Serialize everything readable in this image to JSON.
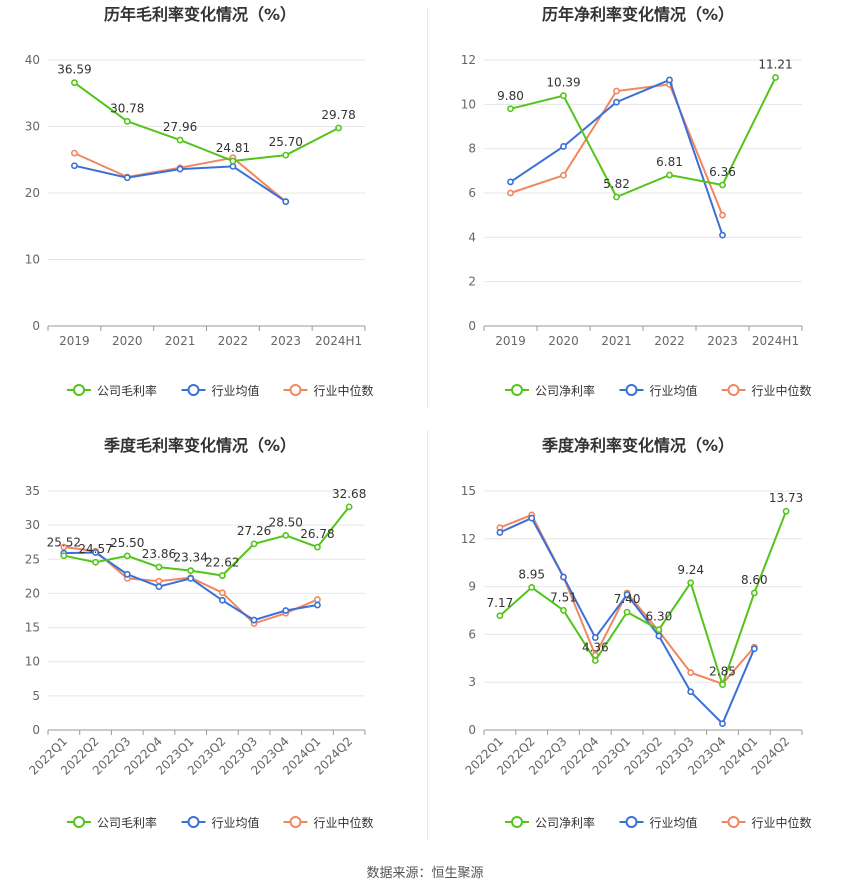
{
  "colors": {
    "company": "#52c41a",
    "industry_avg": "#3a70d8",
    "industry_median": "#f0875f",
    "grid": "#e6e6e6",
    "axis_text": "#666666",
    "title_text": "#333333"
  },
  "source_text": "数据来源：恒生聚源",
  "chart_data": [
    {
      "type": "line",
      "title": "历年毛利率变化情况（%）",
      "categories": [
        "2019",
        "2020",
        "2021",
        "2022",
        "2023",
        "2024H1"
      ],
      "ylim": [
        0,
        40
      ],
      "yticks": [
        0,
        10,
        20,
        30,
        40
      ],
      "series": [
        {
          "name": "公司毛利率",
          "values": [
            36.59,
            30.78,
            27.96,
            24.81,
            25.7,
            29.78
          ],
          "labels": [
            "36.59",
            "30.78",
            "27.96",
            "24.81",
            "25.70",
            "29.78"
          ]
        },
        {
          "name": "行业均值",
          "values": [
            24.1,
            22.3,
            23.6,
            24.0,
            18.7,
            null
          ]
        },
        {
          "name": "行业中位数",
          "values": [
            26.0,
            22.4,
            23.8,
            25.3,
            18.7,
            null
          ]
        }
      ],
      "legend": "bottom",
      "grid": true
    },
    {
      "type": "line",
      "title": "历年净利率变化情况（%）",
      "categories": [
        "2019",
        "2020",
        "2021",
        "2022",
        "2023",
        "2024H1"
      ],
      "ylim": [
        0,
        12
      ],
      "yticks": [
        0,
        2,
        4,
        6,
        8,
        10,
        12
      ],
      "series": [
        {
          "name": "公司净利率",
          "values": [
            9.8,
            10.39,
            5.82,
            6.81,
            6.36,
            11.21
          ],
          "labels": [
            "9.80",
            "10.39",
            "5.82",
            "6.81",
            "6.36",
            "11.21"
          ]
        },
        {
          "name": "行业均值",
          "values": [
            6.5,
            8.1,
            10.1,
            11.1,
            4.1,
            null
          ]
        },
        {
          "name": "行业中位数",
          "values": [
            6.0,
            6.8,
            10.6,
            10.9,
            5.0,
            null
          ]
        }
      ],
      "legend": "bottom",
      "grid": true
    },
    {
      "type": "line",
      "title": "季度毛利率变化情况（%）",
      "categories": [
        "2022Q1",
        "2022Q2",
        "2022Q3",
        "2022Q4",
        "2023Q1",
        "2023Q2",
        "2023Q3",
        "2023Q4",
        "2024Q1",
        "2024Q2"
      ],
      "ylim": [
        0,
        35
      ],
      "yticks": [
        0,
        5,
        10,
        15,
        20,
        25,
        30,
        35
      ],
      "series": [
        {
          "name": "公司毛利率",
          "values": [
            25.52,
            24.57,
            25.5,
            23.86,
            23.34,
            22.62,
            27.26,
            28.5,
            26.78,
            32.68
          ],
          "labels": [
            "25.52",
            "24.57",
            "25.50",
            "23.86",
            "23.34",
            "22.62",
            "27.26",
            "28.50",
            "26.78",
            "32.68"
          ]
        },
        {
          "name": "行业均值",
          "values": [
            25.9,
            26.0,
            22.8,
            21.0,
            22.2,
            19.0,
            16.1,
            17.5,
            18.3,
            null
          ]
        },
        {
          "name": "行业中位数",
          "values": [
            26.8,
            26.2,
            22.2,
            21.8,
            22.3,
            20.1,
            15.6,
            17.1,
            19.1,
            null
          ]
        }
      ],
      "legend": "bottom",
      "grid": true
    },
    {
      "type": "line",
      "title": "季度净利率变化情况（%）",
      "categories": [
        "2022Q1",
        "2022Q2",
        "2022Q3",
        "2022Q4",
        "2023Q1",
        "2023Q2",
        "2023Q3",
        "2023Q4",
        "2024Q1",
        "2024Q2"
      ],
      "ylim": [
        0,
        15
      ],
      "yticks": [
        0,
        3,
        6,
        9,
        12,
        15
      ],
      "series": [
        {
          "name": "公司净利率",
          "values": [
            7.17,
            8.95,
            7.51,
            4.36,
            7.4,
            6.3,
            9.24,
            2.85,
            8.6,
            13.73
          ],
          "labels": [
            "7.17",
            "8.95",
            "7.51",
            "4.36",
            "7.40",
            "6.30",
            "9.24",
            "2.85",
            "8.60",
            "13.73"
          ]
        },
        {
          "name": "行业均值",
          "values": [
            12.4,
            13.3,
            9.6,
            5.8,
            8.5,
            5.9,
            2.4,
            0.4,
            5.1,
            null
          ]
        },
        {
          "name": "行业中位数",
          "values": [
            12.7,
            13.5,
            9.6,
            4.7,
            8.6,
            6.2,
            3.6,
            2.9,
            5.2,
            null
          ]
        }
      ],
      "legend": "bottom",
      "grid": true
    }
  ]
}
